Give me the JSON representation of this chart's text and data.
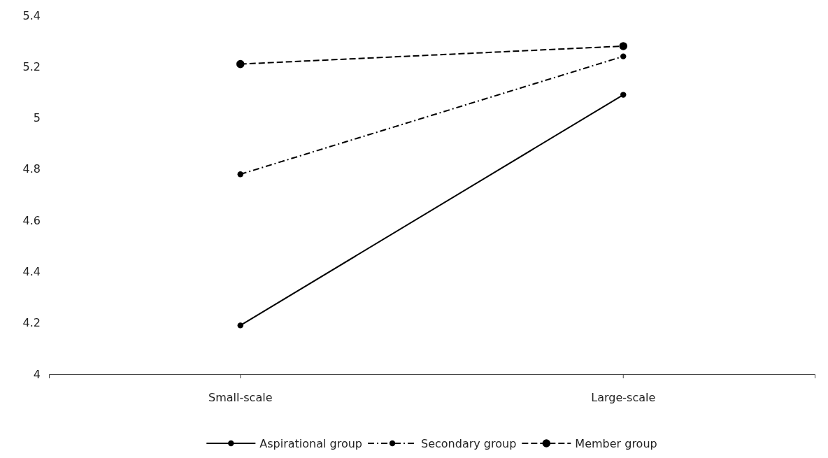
{
  "chart_data": {
    "type": "line",
    "categories": [
      "Small-scale",
      "Large-scale"
    ],
    "series": [
      {
        "name": "Aspirational group",
        "color": "#000000",
        "values": [
          4.19,
          5.09
        ],
        "line_style": "solid",
        "marker": "circle"
      },
      {
        "name": "Secondary group",
        "color": "#000000",
        "values": [
          4.78,
          5.24
        ],
        "line_style": "dashdot",
        "marker": "circle"
      },
      {
        "name": "Member group",
        "color": "#000000",
        "values": [
          5.21,
          5.28
        ],
        "line_style": "dashed",
        "marker": "circle"
      }
    ],
    "ylim": [
      4,
      5.4
    ],
    "yticks": [
      4,
      4.2,
      4.4,
      4.6,
      4.8,
      5,
      5.2,
      5.4
    ],
    "grid": false,
    "legend": "bottom"
  }
}
